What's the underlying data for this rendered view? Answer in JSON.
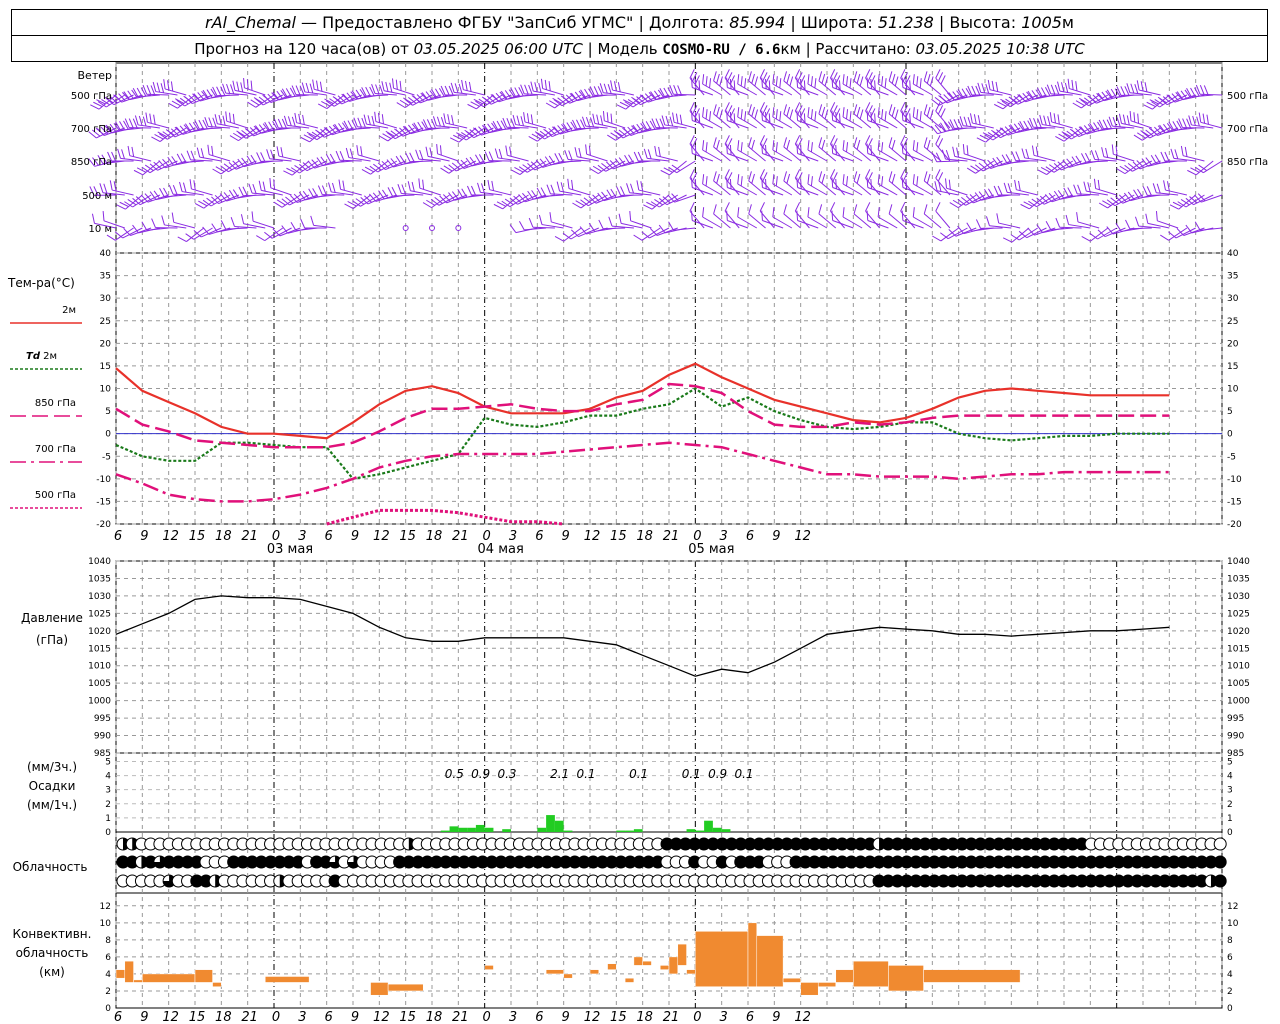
{
  "header": {
    "station": "rAl_Chemal",
    "provider": " — Предоставлено ФГБУ \"ЗапСиб УГМС\" | Долгота: ",
    "lon": "85.994",
    "lat_label": " | Широта: ",
    "lat": "51.238",
    "alt_label": " | Высота: ",
    "alt": "1005",
    "alt_unit": "м",
    "forecast_label": "Прогноз на 120 часа(ов) от ",
    "forecast_time": "03.05.2025 06:00 UTC",
    "model_label": "  | Модель ",
    "model": "COSMO-RU / 6.6",
    "model_unit": "км",
    "calc_label": " | Рассчитано: ",
    "calc_time": "03.05.2025 10:38 UTC"
  },
  "colors": {
    "t2m": "#e8312a",
    "td2m": "#1a7a1a",
    "t850": "#e0107a",
    "t700": "#e0107a",
    "t500": "#e0107a",
    "pressure": "#000000",
    "precip": "#22cc22",
    "conv": "#f08a30",
    "wind": "#8a2be2",
    "zero": "#3333cc"
  },
  "chart_data": [
    {
      "type": "barbs",
      "title": "Ветер",
      "levels": [
        "500 гПа",
        "700 гПа",
        "850 гПа",
        "500 м",
        "10 м"
      ],
      "note": "wind barbs every hour at each level; directions predominantly westerly/south-westerly"
    },
    {
      "type": "line",
      "title": "Тем-ра(°C)",
      "ylim": [
        -20,
        40
      ],
      "yticks": [
        40,
        35,
        30,
        25,
        20,
        15,
        10,
        5,
        0,
        -5,
        -10,
        -15,
        -20
      ],
      "x_hours": [
        0,
        3,
        6,
        9,
        12,
        15,
        18,
        21,
        24,
        27,
        30,
        33,
        36,
        39,
        42,
        45,
        48,
        51,
        54,
        57,
        60,
        63,
        66,
        69,
        72,
        75,
        78,
        81,
        84,
        87,
        90,
        93,
        96,
        99,
        102,
        105,
        108,
        111,
        114,
        117,
        120
      ],
      "xtick_labels": [
        "6",
        "9",
        "12",
        "15",
        "18",
        "21",
        "0",
        "3",
        "6",
        "9",
        "12",
        "15",
        "18",
        "21",
        "0",
        "3",
        "6",
        "9",
        "12",
        "15",
        "18",
        "21",
        "0",
        "3",
        "6",
        "9",
        "12"
      ],
      "date_labels": [
        "03 мая",
        "04 мая",
        "05 мая"
      ],
      "series": [
        {
          "name": "2м",
          "values": [
            14.5,
            9.5,
            7,
            4.5,
            1.5,
            0,
            0,
            -0.5,
            -1,
            2.5,
            6.5,
            9.5,
            10.5,
            9,
            6,
            4.5,
            4.5,
            4.5,
            5.5,
            8,
            9.5,
            13,
            15.5,
            12.5,
            10,
            7.5,
            6,
            4.5,
            3,
            2.5,
            3.5,
            5.5,
            8,
            9.5,
            10,
            9.5,
            9,
            8.5,
            8.5,
            8.5,
            8.5
          ]
        },
        {
          "name": "Td 2м",
          "values": [
            -2.5,
            -5,
            -6,
            -6,
            -2,
            -2,
            -2.5,
            -3,
            -3,
            -10,
            -9,
            -7.5,
            -6,
            -4.5,
            3.5,
            2,
            1.5,
            2.5,
            4,
            4,
            5.5,
            6.5,
            10,
            6,
            8,
            5,
            3,
            1.5,
            1,
            1.5,
            2.5,
            2.5,
            0,
            -1,
            -1.5,
            -1,
            -0.5,
            -0.5,
            0,
            0,
            0
          ]
        },
        {
          "name": "850 гПа",
          "values": [
            5.5,
            2,
            0.5,
            -1.5,
            -2,
            -2.5,
            -3,
            -3,
            -3,
            -2,
            0.5,
            3.5,
            5.5,
            5.5,
            6,
            6.5,
            5.5,
            5,
            5,
            6.5,
            7.5,
            11,
            10.5,
            9,
            5,
            2,
            1.5,
            1.5,
            2.5,
            2,
            2.5,
            3.5,
            4,
            4,
            4,
            4,
            4,
            4,
            4,
            4,
            4
          ]
        },
        {
          "name": "700 гПа",
          "values": [
            -9,
            -11,
            -13.5,
            -14.5,
            -15,
            -15,
            -14.5,
            -13.5,
            -12,
            -10,
            -7.5,
            -6,
            -5,
            -4.5,
            -4.5,
            -4.5,
            -4.5,
            -4,
            -3.5,
            -3,
            -2.5,
            -2,
            -2.5,
            -3,
            -4.5,
            -6,
            -7.5,
            -9,
            -9,
            -9.5,
            -9.5,
            -9.5,
            -10,
            -9.5,
            -9,
            -9,
            -8.5,
            -8.5,
            -8.5,
            -8.5,
            -8.5
          ]
        },
        {
          "name": "500 гПа",
          "values": [
            null,
            null,
            null,
            null,
            null,
            null,
            null,
            null,
            -20,
            -18.5,
            -17,
            -17,
            -17,
            -17.5,
            -18.5,
            -19.5,
            -19.5,
            -20,
            null,
            null,
            -20,
            null,
            null,
            null,
            null,
            null,
            null,
            null,
            null,
            null,
            null,
            null,
            null,
            null,
            null,
            null,
            null,
            null,
            null,
            null,
            null
          ]
        }
      ]
    },
    {
      "type": "line",
      "title": "Давление",
      "ylabel": "(гПа)",
      "ylim": [
        985,
        1040
      ],
      "yticks": [
        1040,
        1035,
        1030,
        1025,
        1020,
        1015,
        1010,
        1005,
        1000,
        995,
        990,
        985
      ],
      "series": [
        {
          "name": "Давление",
          "values": [
            1019,
            1022,
            1025,
            1029,
            1030,
            1029.5,
            1029.5,
            1029,
            1027,
            1025,
            1021,
            1018,
            1017,
            1017,
            1018,
            1018,
            1018,
            1018,
            1017,
            1016,
            1013,
            1010,
            1007,
            1009,
            1008,
            1011,
            1015,
            1019,
            1020,
            1021,
            1020.5,
            1020,
            1019,
            1019,
            1018.5,
            1019,
            1019.5,
            1020,
            1020,
            1020.5,
            1021
          ]
        }
      ]
    },
    {
      "type": "bar",
      "title": "Осадки",
      "units": [
        "(мм/3ч.)",
        "(мм/1ч.)"
      ],
      "ylim": [
        0,
        5
      ],
      "yticks": [
        5,
        4,
        3,
        2,
        1,
        0
      ],
      "accum3h_labels": [
        {
          "hour": 39,
          "value": "0.5"
        },
        {
          "hour": 42,
          "value": "0.9"
        },
        {
          "hour": 45,
          "value": "0.3"
        },
        {
          "hour": 51,
          "value": "2.1"
        },
        {
          "hour": 54,
          "value": "0.1"
        },
        {
          "hour": 60,
          "value": "0.1"
        },
        {
          "hour": 66,
          "value": "0.1"
        },
        {
          "hour": 69,
          "value": "0.9"
        },
        {
          "hour": 72,
          "value": "0.1"
        }
      ],
      "hourly": [
        {
          "hour": 37,
          "mm": 0.1
        },
        {
          "hour": 38,
          "mm": 0.4
        },
        {
          "hour": 39,
          "mm": 0.3
        },
        {
          "hour": 40,
          "mm": 0.3
        },
        {
          "hour": 41,
          "mm": 0.5
        },
        {
          "hour": 42,
          "mm": 0.3
        },
        {
          "hour": 44,
          "mm": 0.2
        },
        {
          "hour": 48,
          "mm": 0.3
        },
        {
          "hour": 49,
          "mm": 1.2
        },
        {
          "hour": 50,
          "mm": 0.8
        },
        {
          "hour": 51,
          "mm": 0.1
        },
        {
          "hour": 57,
          "mm": 0.1
        },
        {
          "hour": 58,
          "mm": 0.1
        },
        {
          "hour": 59,
          "mm": 0.2
        },
        {
          "hour": 65,
          "mm": 0.2
        },
        {
          "hour": 66,
          "mm": 0.1
        },
        {
          "hour": 67,
          "mm": 0.8
        },
        {
          "hour": 68,
          "mm": 0.3
        },
        {
          "hour": 69,
          "mm": 0.2
        }
      ]
    },
    {
      "type": "heatmap",
      "title": "Облачность",
      "rows": [
        "upper",
        "middle",
        "lower"
      ],
      "note": "cloud cover symbols per hour, octas 0..8",
      "upper": [
        4,
        5,
        0,
        0,
        0,
        0,
        0,
        0,
        0,
        0,
        0,
        0,
        0,
        0,
        0,
        0,
        0,
        0,
        0,
        0,
        0,
        0,
        0,
        0,
        0,
        0,
        0,
        0,
        0,
        0,
        0,
        4,
        0,
        0,
        0,
        0,
        0,
        0,
        0,
        0,
        0,
        0,
        0,
        0,
        0,
        0,
        0,
        0,
        0,
        0,
        0,
        0,
        0,
        0,
        0,
        0,
        0,
        0,
        0,
        8,
        8,
        8,
        8,
        8,
        8,
        8,
        8,
        8,
        8,
        8,
        8,
        8,
        8,
        8,
        8,
        8,
        8,
        8,
        8,
        8,
        8,
        8,
        5,
        8,
        8,
        8,
        8,
        8,
        8,
        8,
        8,
        8,
        8,
        8,
        8,
        8,
        8,
        8,
        8,
        8,
        8,
        8,
        8,
        8,
        8,
        0,
        0,
        0,
        0,
        0,
        0,
        0,
        0,
        0,
        0,
        0,
        0,
        0,
        0,
        0,
        0,
        0
      ],
      "middle": [
        8,
        8,
        5,
        8,
        6,
        8,
        8,
        8,
        8,
        0,
        0,
        0,
        8,
        8,
        8,
        8,
        8,
        8,
        8,
        8,
        0,
        8,
        8,
        6,
        0,
        6,
        0,
        0,
        0,
        0,
        8,
        8,
        8,
        8,
        8,
        8,
        8,
        8,
        8,
        8,
        8,
        8,
        8,
        8,
        8,
        8,
        8,
        8,
        8,
        8,
        8,
        8,
        8,
        8,
        8,
        8,
        8,
        8,
        8,
        0,
        0,
        0,
        8,
        0,
        0,
        8,
        0,
        8,
        8,
        8,
        0,
        0,
        0,
        8,
        8,
        8,
        8,
        8,
        8,
        8,
        8,
        8,
        8,
        8,
        8,
        8,
        8,
        8,
        8,
        8,
        8,
        8,
        8,
        8,
        8,
        8,
        8,
        8,
        8,
        8,
        8,
        8,
        8,
        8,
        8,
        8,
        8,
        8,
        8,
        8,
        8,
        8,
        8,
        8,
        8,
        8,
        8,
        8,
        8,
        8,
        8
      ],
      "lower": [
        0,
        0,
        0,
        0,
        0,
        6,
        0,
        0,
        8,
        8,
        4,
        0,
        0,
        0,
        0,
        0,
        0,
        4,
        0,
        0,
        0,
        0,
        0,
        8,
        0,
        0,
        0,
        0,
        0,
        0,
        0,
        0,
        0,
        0,
        0,
        0,
        0,
        0,
        0,
        0,
        0,
        0,
        0,
        0,
        0,
        0,
        0,
        0,
        0,
        0,
        0,
        0,
        0,
        0,
        0,
        0,
        0,
        0,
        0,
        0,
        0,
        0,
        0,
        0,
        0,
        0,
        0,
        0,
        0,
        0,
        0,
        0,
        0,
        0,
        0,
        0,
        0,
        0,
        0,
        0,
        0,
        0,
        8,
        8,
        8,
        8,
        8,
        8,
        8,
        8,
        8,
        8,
        8,
        8,
        8,
        8,
        8,
        8,
        8,
        8,
        8,
        8,
        8,
        8,
        8,
        8,
        8,
        8,
        8,
        8,
        8,
        8,
        8,
        8,
        8,
        8,
        8,
        8,
        4,
        8,
        4
      ]
    },
    {
      "type": "bar",
      "title": "Конвективн. облачность",
      "ylabel": "(км)",
      "ylim": [
        0,
        13
      ],
      "yticks": [
        12,
        10,
        8,
        6,
        4,
        2,
        0
      ],
      "segments": [
        {
          "from": 0,
          "to": 1,
          "bottom": 3.5,
          "top": 4.5
        },
        {
          "from": 1,
          "to": 2,
          "bottom": 3,
          "top": 5.5
        },
        {
          "from": 2,
          "to": 3,
          "bottom": 3,
          "top": 3.3
        },
        {
          "from": 3,
          "to": 9,
          "bottom": 3,
          "top": 4
        },
        {
          "from": 9,
          "to": 11,
          "bottom": 3,
          "top": 4.5
        },
        {
          "from": 11,
          "to": 12,
          "bottom": 2.5,
          "top": 3
        },
        {
          "from": 17,
          "to": 22,
          "bottom": 3,
          "top": 3.7
        },
        {
          "from": 29,
          "to": 31,
          "bottom": 1.5,
          "top": 3
        },
        {
          "from": 31,
          "to": 35,
          "bottom": 2,
          "top": 2.8
        },
        {
          "from": 42,
          "to": 43,
          "bottom": 4.5,
          "top": 5
        },
        {
          "from": 49,
          "to": 51,
          "bottom": 4,
          "top": 4.5
        },
        {
          "from": 51,
          "to": 52,
          "bottom": 3.5,
          "top": 4
        },
        {
          "from": 54,
          "to": 55,
          "bottom": 4,
          "top": 4.5
        },
        {
          "from": 56,
          "to": 57,
          "bottom": 4.5,
          "top": 5.2
        },
        {
          "from": 58,
          "to": 59,
          "bottom": 3,
          "top": 3.5
        },
        {
          "from": 59,
          "to": 60,
          "bottom": 5,
          "top": 6
        },
        {
          "from": 60,
          "to": 61,
          "bottom": 5,
          "top": 5.5
        },
        {
          "from": 62,
          "to": 63,
          "bottom": 4.5,
          "top": 5
        },
        {
          "from": 63,
          "to": 64,
          "bottom": 4,
          "top": 6
        },
        {
          "from": 64,
          "to": 65,
          "bottom": 5,
          "top": 7.5
        },
        {
          "from": 65,
          "to": 66,
          "bottom": 4,
          "top": 4.5
        },
        {
          "from": 66,
          "to": 72,
          "bottom": 2.5,
          "top": 9
        },
        {
          "from": 72,
          "to": 73,
          "bottom": 2.5,
          "top": 10
        },
        {
          "from": 73,
          "to": 76,
          "bottom": 2.5,
          "top": 8.5
        },
        {
          "from": 76,
          "to": 78,
          "bottom": 3,
          "top": 3.5
        },
        {
          "from": 78,
          "to": 80,
          "bottom": 1.5,
          "top": 3
        },
        {
          "from": 80,
          "to": 82,
          "bottom": 2.5,
          "top": 3
        },
        {
          "from": 82,
          "to": 84,
          "bottom": 3,
          "top": 4.5
        },
        {
          "from": 84,
          "to": 88,
          "bottom": 2.5,
          "top": 5.5
        },
        {
          "from": 88,
          "to": 92,
          "bottom": 2,
          "top": 5
        },
        {
          "from": 92,
          "to": 103,
          "bottom": 3,
          "top": 4.5
        }
      ]
    }
  ],
  "labels": {
    "wind": "Ветер",
    "temp": "Тем-ра(°C)",
    "leg_2m": "2м",
    "leg_td_a": "Td",
    "leg_td_b": " 2м",
    "leg_850": "850 гПа",
    "leg_700": "700 гПа",
    "leg_500": "500 гПа",
    "pressure": "Давление",
    "pressure_unit": "(гПа)",
    "precip_3h": "(мм/3ч.)",
    "precip": "Осадки",
    "precip_1h": "(мм/1ч.)",
    "clouds": "Облачность",
    "conv1": "Конвективн.",
    "conv2": "облачность",
    "conv_unit": "(км)"
  }
}
